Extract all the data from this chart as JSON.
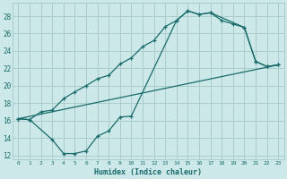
{
  "title": "",
  "xlabel": "Humidex (Indice chaleur)",
  "bg_color": "#cce8e8",
  "grid_color": "#aacccc",
  "line_color": "#1a6b6b",
  "xlim": [
    -0.5,
    23.5
  ],
  "ylim": [
    11.5,
    29.5
  ],
  "xticks": [
    0,
    1,
    2,
    3,
    4,
    5,
    6,
    7,
    8,
    9,
    10,
    11,
    12,
    13,
    14,
    15,
    16,
    17,
    18,
    19,
    20,
    21,
    22,
    23
  ],
  "yticks": [
    12,
    14,
    16,
    18,
    20,
    22,
    24,
    26,
    28
  ],
  "line1_x": [
    0,
    1,
    2,
    3,
    4,
    5,
    6,
    7,
    8,
    9,
    10,
    11,
    12,
    13,
    14,
    15,
    16,
    17,
    18,
    19,
    20,
    21,
    22,
    23
  ],
  "line1_y": [
    16.2,
    16.1,
    17.0,
    17.2,
    18.5,
    19.3,
    20.0,
    20.8,
    21.2,
    22.5,
    23.2,
    24.5,
    25.2,
    26.8,
    27.5,
    28.6,
    28.2,
    28.4,
    27.5,
    27.1,
    26.7,
    22.8,
    22.2,
    22.4
  ],
  "line2_x": [
    0,
    1,
    3,
    4,
    5,
    6,
    7,
    8,
    9,
    10,
    14,
    15,
    16,
    17,
    20,
    21,
    22,
    23
  ],
  "line2_y": [
    16.2,
    16.1,
    13.8,
    12.2,
    12.2,
    12.5,
    14.2,
    14.8,
    16.4,
    16.5,
    27.5,
    28.6,
    28.2,
    28.4,
    26.7,
    22.8,
    22.2,
    22.4
  ],
  "line3_x": [
    0,
    23
  ],
  "line3_y": [
    16.2,
    22.4
  ]
}
